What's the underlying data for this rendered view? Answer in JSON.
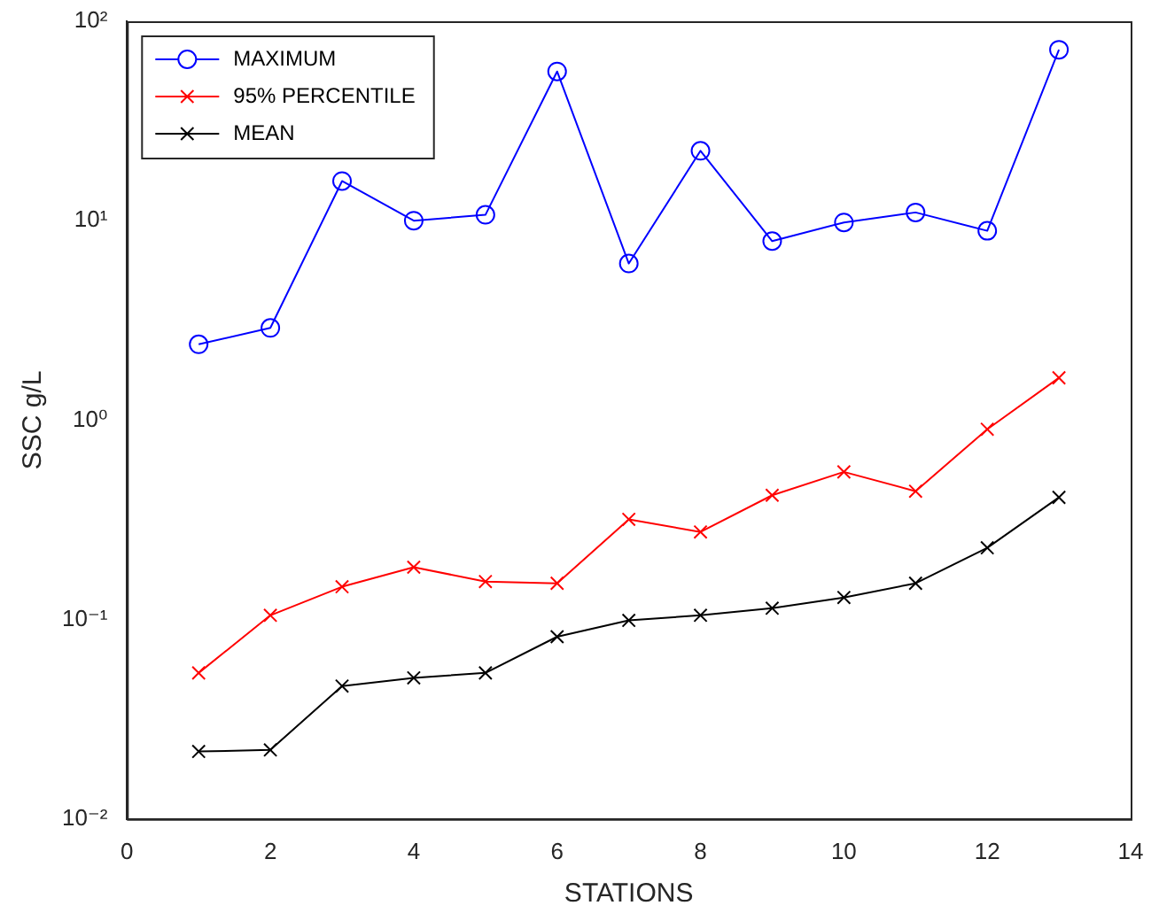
{
  "chart_data": {
    "type": "line",
    "xlabel": "STATIONS",
    "ylabel": "SSC g/L",
    "x": [
      1,
      2,
      3,
      4,
      5,
      6,
      7,
      8,
      9,
      10,
      11,
      12,
      13
    ],
    "series": [
      {
        "name": "MAXIMUM",
        "color": "#0000ff",
        "marker": "circle",
        "values": [
          2.4,
          2.9,
          15.8,
          10,
          10.7,
          56,
          6.1,
          22.4,
          7.9,
          9.8,
          11,
          8.9,
          72
        ]
      },
      {
        "name": "95% PERCENTILE",
        "color": "#ff0000",
        "marker": "cross",
        "values": [
          0.054,
          0.105,
          0.146,
          0.183,
          0.155,
          0.152,
          0.318,
          0.275,
          0.42,
          0.55,
          0.44,
          0.9,
          1.63
        ]
      },
      {
        "name": "MEAN",
        "color": "#000000",
        "marker": "cross",
        "values": [
          0.0218,
          0.0222,
          0.0464,
          0.051,
          0.054,
          0.082,
          0.099,
          0.105,
          0.114,
          0.129,
          0.152,
          0.229,
          0.41
        ]
      }
    ],
    "log": "y",
    "xlim": [
      0,
      14
    ],
    "xticks": [
      0,
      2,
      4,
      6,
      8,
      10,
      12,
      14
    ],
    "ylim": [
      0.01,
      100
    ],
    "yticks": [
      {
        "value": 0.01,
        "label": "10⁻²"
      },
      {
        "value": 0.1,
        "label": "10⁻¹"
      },
      {
        "value": 1,
        "label": "10⁰"
      },
      {
        "value": 10,
        "label": "10¹"
      },
      {
        "value": 100,
        "label": "10²"
      }
    ],
    "grid": false,
    "legend": "top left"
  }
}
